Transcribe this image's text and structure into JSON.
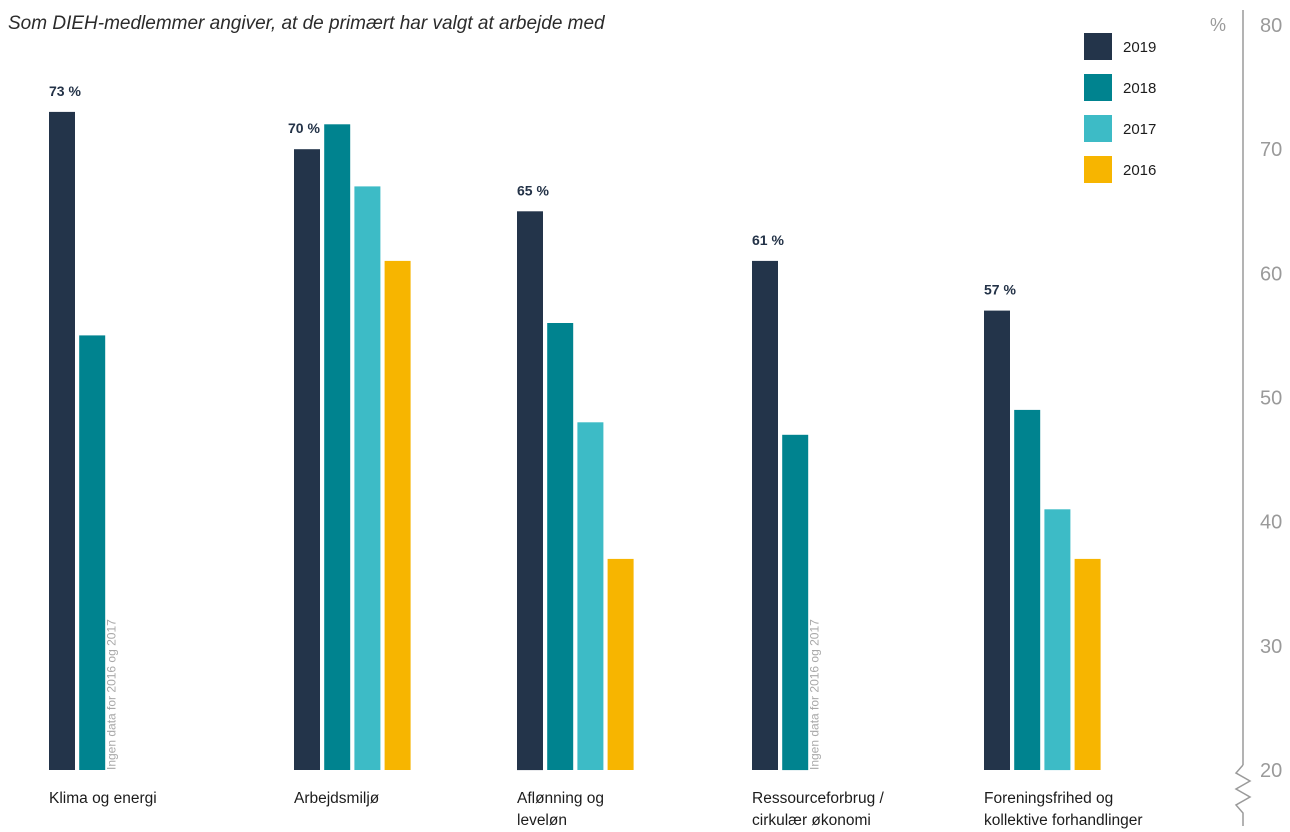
{
  "chart_data": {
    "type": "bar",
    "title": "Som DIEH-medlemmer angiver, at de primært har valgt at arbejde med",
    "ylabel": "%",
    "ylim": [
      20,
      80
    ],
    "yticks": [
      20,
      30,
      40,
      50,
      60,
      70,
      80
    ],
    "axis_break": true,
    "legend_position": "top-right",
    "categories": [
      [
        "Klima og energi"
      ],
      [
        "Arbejdsmiljø"
      ],
      [
        "Aflønning og",
        "leveløn"
      ],
      [
        "Ressourceforbrug /",
        "cirkulær økonomi"
      ],
      [
        "Foreningsfrihed og",
        "kollektive forhandlinger"
      ]
    ],
    "series": [
      {
        "name": "2019",
        "color": "#23344a",
        "values": [
          73,
          70,
          65,
          61,
          57
        ]
      },
      {
        "name": "2018",
        "color": "#00838f",
        "values": [
          55,
          72,
          56,
          47,
          49
        ]
      },
      {
        "name": "2017",
        "color": "#3dbbc6",
        "values": [
          null,
          67,
          48,
          null,
          41
        ]
      },
      {
        "name": "2016",
        "color": "#f7b500",
        "values": [
          null,
          61,
          37,
          null,
          37
        ]
      }
    ],
    "data_labels": [
      "73 %",
      "70 %",
      "65 %",
      "61 %",
      "57 %"
    ],
    "notes": [
      {
        "category_index": 0,
        "text": "Ingen data for 2016 og 2017"
      },
      {
        "category_index": 3,
        "text": "Ingen data for 2016 og 2017"
      }
    ]
  }
}
